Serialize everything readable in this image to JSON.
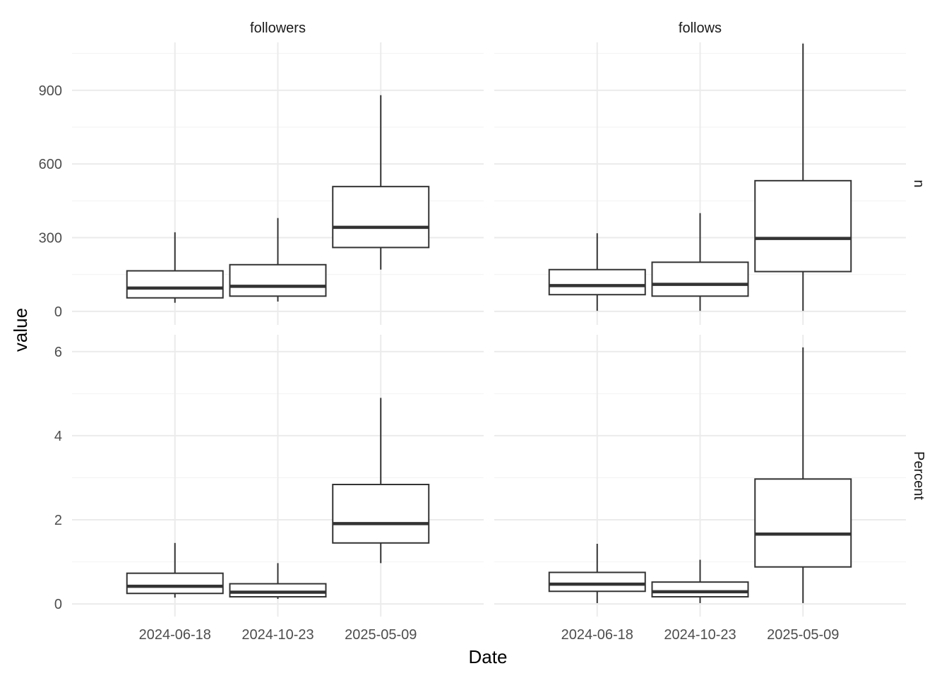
{
  "chart_data": {
    "type": "boxplot",
    "xlabel": "Date",
    "ylabel": "value",
    "categories": [
      "2024-06-18",
      "2024-10-23",
      "2025-05-09"
    ],
    "facet_columns": [
      "followers",
      "follows"
    ],
    "facet_rows": [
      "n",
      "Percent"
    ],
    "grid": true,
    "rows": [
      {
        "name": "n",
        "ylim": [
          -55,
          1095
        ],
        "yticks": [
          0,
          300,
          600,
          900
        ],
        "ytick_labels": [
          "0",
          "300",
          "600",
          "900"
        ],
        "panels": [
          {
            "facet": "followers",
            "boxes": [
              {
                "category": "2024-06-18",
                "low": 35,
                "q1": 55,
                "median": 95,
                "q3": 165,
                "high": 322
              },
              {
                "category": "2024-10-23",
                "low": 40,
                "q1": 62,
                "median": 102,
                "q3": 190,
                "high": 380
              },
              {
                "category": "2025-05-09",
                "low": 170,
                "q1": 260,
                "median": 342,
                "q3": 508,
                "high": 880
              }
            ]
          },
          {
            "facet": "follows",
            "boxes": [
              {
                "category": "2024-06-18",
                "low": 2,
                "q1": 68,
                "median": 105,
                "q3": 170,
                "high": 318
              },
              {
                "category": "2024-10-23",
                "low": 2,
                "q1": 62,
                "median": 110,
                "q3": 200,
                "high": 400
              },
              {
                "category": "2025-05-09",
                "low": 2,
                "q1": 162,
                "median": 297,
                "q3": 532,
                "high": 1090
              }
            ]
          }
        ]
      },
      {
        "name": "Percent",
        "ylim": [
          -0.3,
          6.4
        ],
        "yticks": [
          0,
          2,
          4,
          6
        ],
        "ytick_labels": [
          "0",
          "2",
          "4",
          "6"
        ],
        "panels": [
          {
            "facet": "followers",
            "boxes": [
              {
                "category": "2024-06-18",
                "low": 0.15,
                "q1": 0.25,
                "median": 0.42,
                "q3": 0.73,
                "high": 1.45
              },
              {
                "category": "2024-10-23",
                "low": 0.12,
                "q1": 0.17,
                "median": 0.28,
                "q3": 0.48,
                "high": 0.97
              },
              {
                "category": "2025-05-09",
                "low": 0.97,
                "q1": 1.45,
                "median": 1.91,
                "q3": 2.84,
                "high": 4.9
              }
            ]
          },
          {
            "facet": "follows",
            "boxes": [
              {
                "category": "2024-06-18",
                "low": 0.02,
                "q1": 0.3,
                "median": 0.47,
                "q3": 0.75,
                "high": 1.43
              },
              {
                "category": "2024-10-23",
                "low": 0.02,
                "q1": 0.17,
                "median": 0.29,
                "q3": 0.52,
                "high": 1.05
              },
              {
                "category": "2025-05-09",
                "low": 0.02,
                "q1": 0.88,
                "median": 1.66,
                "q3": 2.97,
                "high": 6.1
              }
            ]
          }
        ]
      }
    ]
  }
}
